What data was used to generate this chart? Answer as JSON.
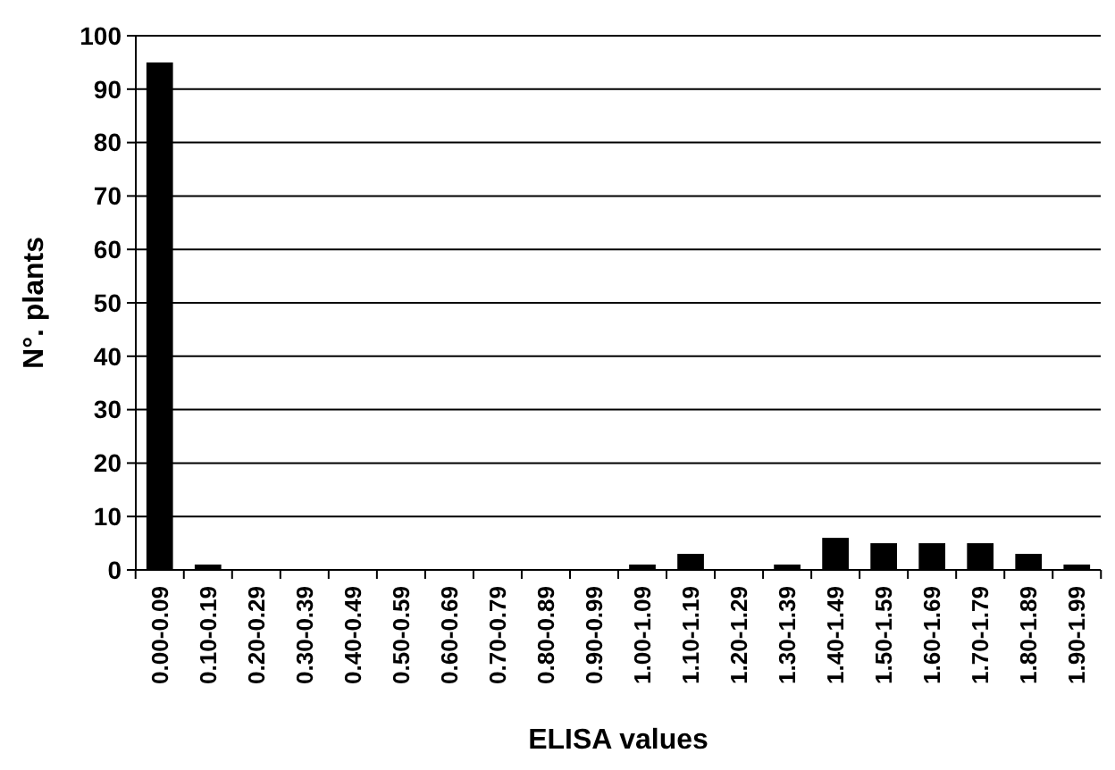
{
  "chart_data": {
    "type": "bar",
    "xlabel": "ELISA values",
    "ylabel": "N°. plants",
    "categories": [
      "0.00-0.09",
      "0.10-0.19",
      "0.20-0.29",
      "0.30-0.39",
      "0.40-0.49",
      "0.50-0.59",
      "0.60-0.69",
      "0.70-0.79",
      "0.80-0.89",
      "0.90-0.99",
      "1.00-1.09",
      "1.10-1.19",
      "1.20-1.29",
      "1.30-1.39",
      "1.40-1.49",
      "1.50-1.59",
      "1.60-1.69",
      "1.70-1.79",
      "1.80-1.89",
      "1.90-1.99"
    ],
    "values": [
      95,
      1,
      0,
      0,
      0,
      0,
      0,
      0,
      0,
      0,
      1,
      3,
      0,
      1,
      6,
      5,
      5,
      5,
      3,
      1
    ],
    "color": "#000000",
    "ylim": [
      0,
      100
    ],
    "yticks": [
      0,
      10,
      20,
      30,
      40,
      50,
      60,
      70,
      80,
      90,
      100
    ],
    "grid": "y"
  }
}
